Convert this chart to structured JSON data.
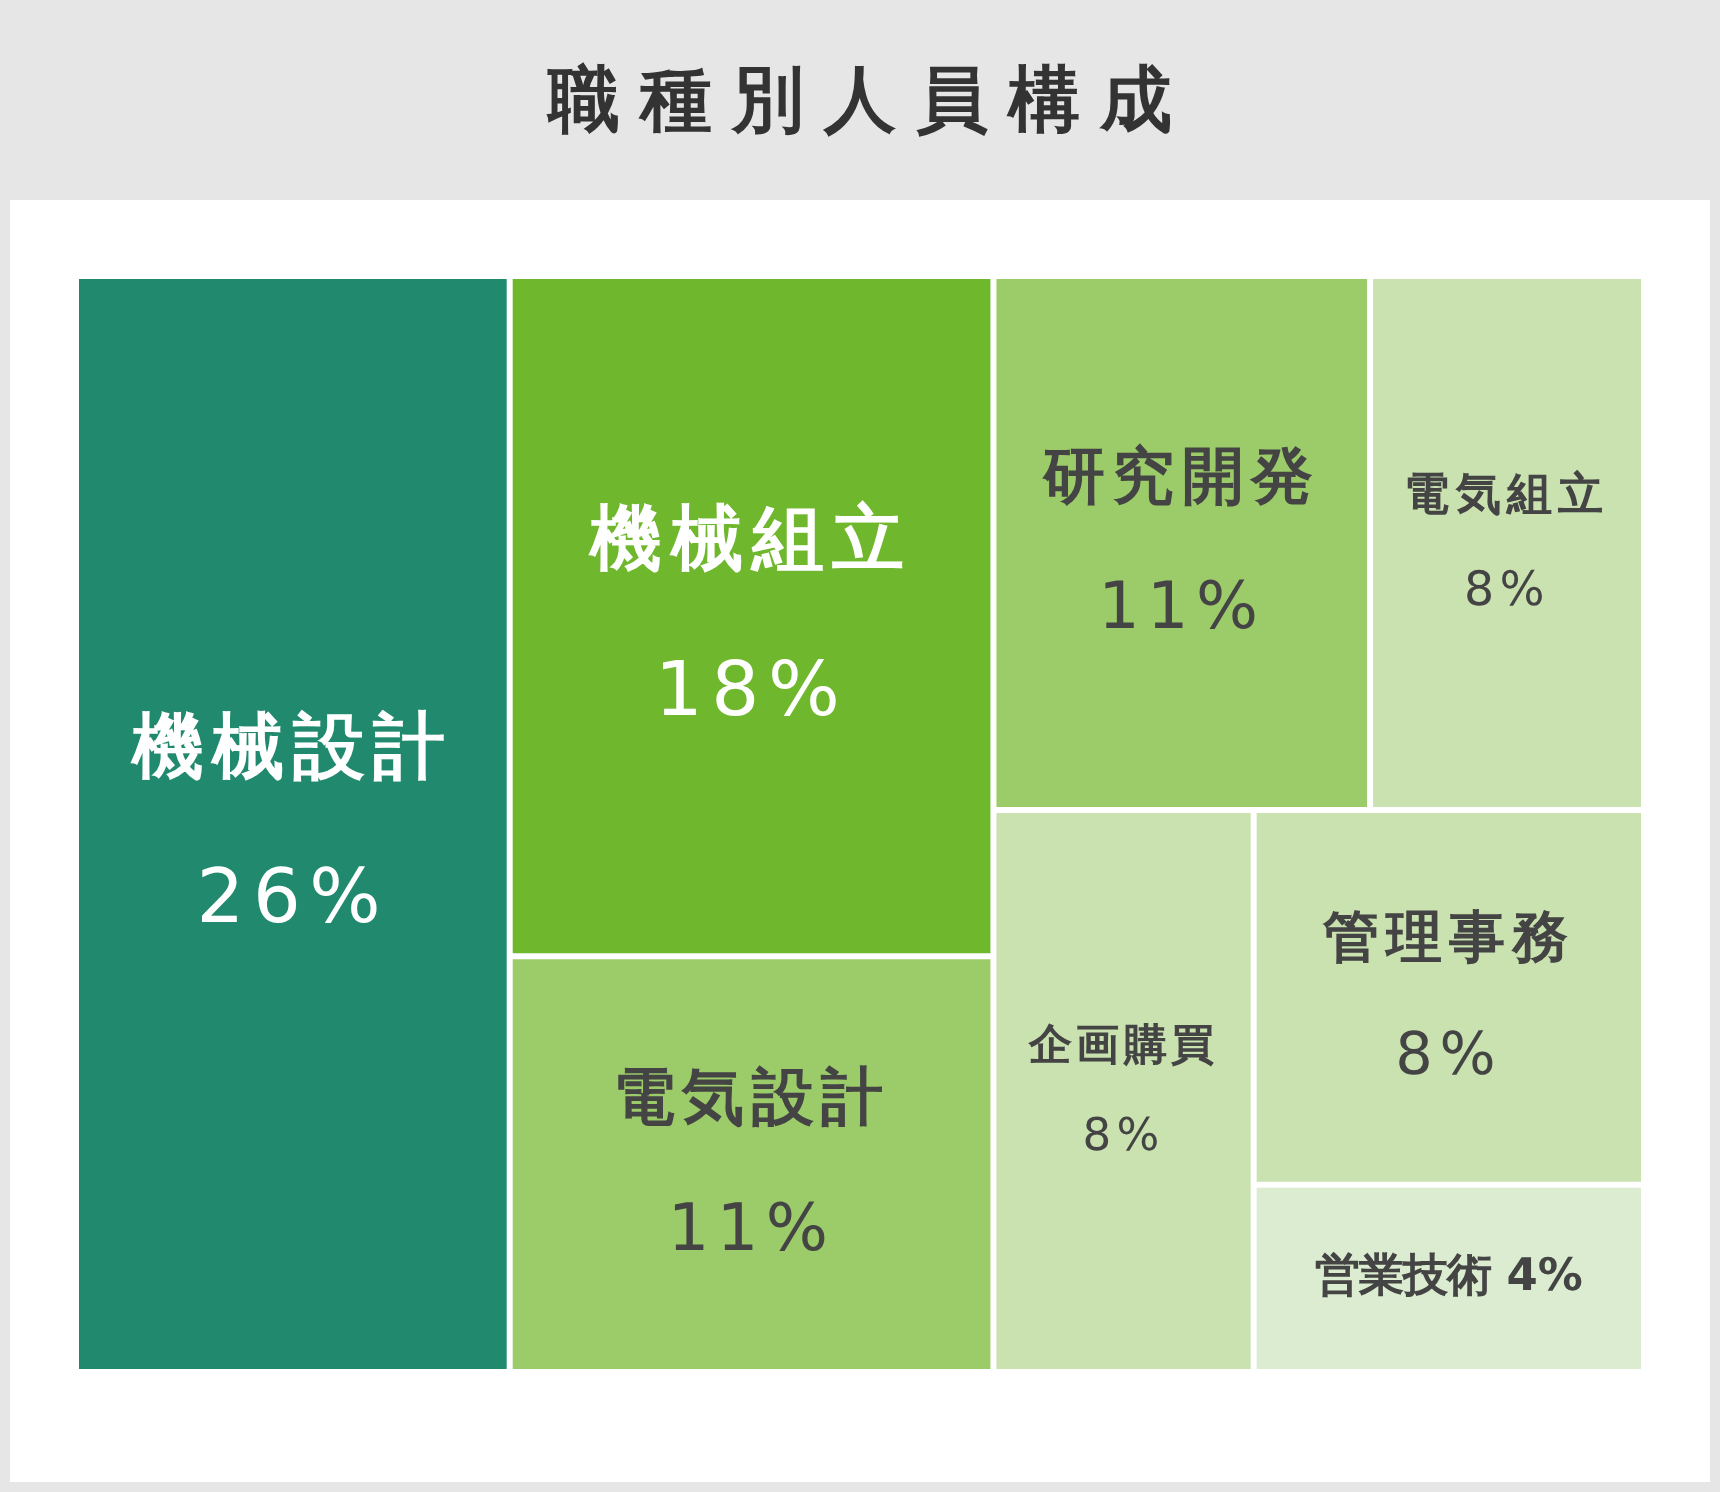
{
  "chart_data": {
    "type": "other",
    "title": "職種別人員構成",
    "categories": [
      "機械設計",
      "機械組立",
      "電気設計",
      "研究開発",
      "電気組立",
      "企画購買",
      "管理事務",
      "営業技術"
    ],
    "values": [
      26,
      18,
      11,
      11,
      8,
      8,
      8,
      4
    ],
    "colors": [
      "#218a6e",
      "#6fb82d",
      "#9ccc6a",
      "#9ccc6a",
      "#c9e2b0",
      "#c9e2b0",
      "#c9e2b0",
      "#dcecd0"
    ],
    "value_labels": [
      "26%",
      "18%",
      "11%",
      "11%",
      "8%",
      "8%",
      "8%",
      "4%"
    ]
  }
}
